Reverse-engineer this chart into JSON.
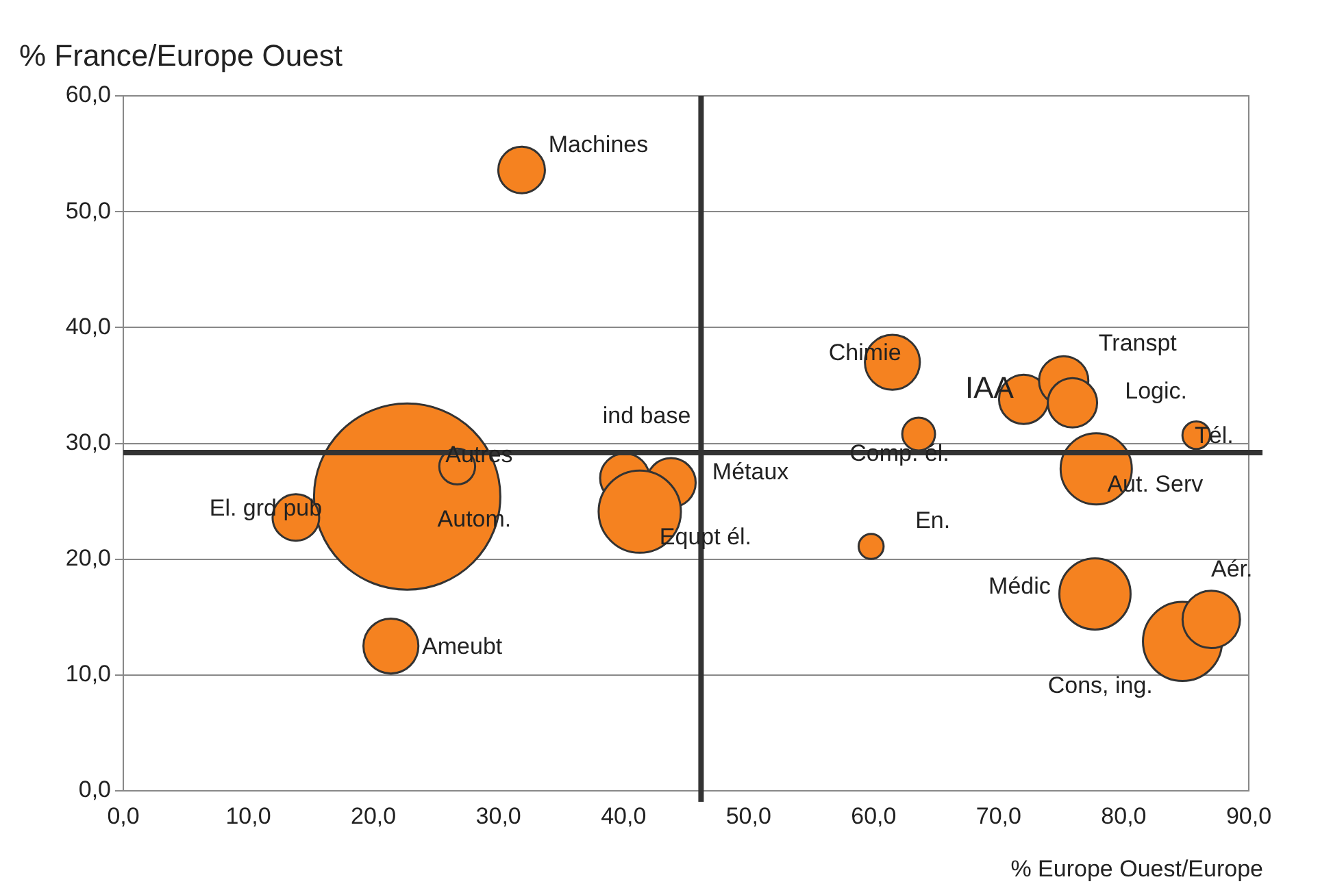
{
  "chart_data": {
    "type": "bubble",
    "ylabel": "% France/Europe Ouest",
    "xlabel": "% Europe Ouest/Europe",
    "x": [
      31.85,
      22.7,
      26.7,
      13.8,
      21.4,
      40.1,
      43.8,
      41.3,
      61.5,
      63.6,
      59.8,
      72.0,
      75.2,
      75.9,
      85.8,
      77.8,
      77.7,
      84.7,
      87.0
    ],
    "series": [
      {
        "color": "#f58220",
        "values": [
          53.6,
          25.4,
          28.0,
          23.6,
          12.5,
          27.0,
          26.6,
          24.1,
          37.0,
          30.8,
          21.1,
          33.8,
          35.4,
          33.5,
          30.7,
          27.8,
          17.0,
          12.9,
          14.8
        ],
        "sizes": [
          0.0625,
          1,
          0.037,
          0.0625,
          0.087,
          0.07,
          0.07,
          0.195,
          0.087,
          0.031,
          0.018,
          0.07,
          0.07,
          0.07,
          0.022,
          0.146,
          0.146,
          0.18,
          0.095
        ]
      }
    ],
    "xlim": [
      0,
      90
    ],
    "ylim": [
      0,
      60
    ],
    "xticks": [
      {
        "value": 0,
        "label": "0,0"
      },
      {
        "value": 10,
        "label": "10,0"
      },
      {
        "value": 20,
        "label": "20,0"
      },
      {
        "value": 30,
        "label": "30,0"
      },
      {
        "value": 40,
        "label": "40,0"
      },
      {
        "value": 50,
        "label": "50,0"
      },
      {
        "value": 60,
        "label": "60,0"
      },
      {
        "value": 70,
        "label": "70,0"
      },
      {
        "value": 80,
        "label": "80,0"
      },
      {
        "value": 90,
        "label": "90,0"
      }
    ],
    "yticks": [
      {
        "value": 0,
        "label": "0,0"
      },
      {
        "value": 10,
        "label": "10,0"
      },
      {
        "value": 20,
        "label": "20,0"
      },
      {
        "value": 30,
        "label": "30,0"
      },
      {
        "value": 40,
        "label": "40,0"
      },
      {
        "value": 50,
        "label": "50,0"
      },
      {
        "value": 60,
        "label": "60,0"
      }
    ],
    "grid": "y",
    "legend": false,
    "ref_lines": [
      {
        "axis": "x",
        "value": 46.2,
        "color": "#333333"
      },
      {
        "axis": "y",
        "value": 29.2,
        "color": "#333333"
      }
    ],
    "annotations": [
      {
        "text": "Machines",
        "x": 31.85,
        "y": 53.6
      },
      {
        "text": "Autom.",
        "x": 22.7,
        "y": 25.4
      },
      {
        "text": "Autres",
        "x": 26.7,
        "y": 28.0
      },
      {
        "text": "El. grd pub",
        "x": 13.8,
        "y": 23.6
      },
      {
        "text": "Ameubt",
        "x": 21.4,
        "y": 12.5
      },
      {
        "text": "ind base",
        "x": 40.1,
        "y": 27.0
      },
      {
        "text": "Métaux",
        "x": 43.8,
        "y": 26.6
      },
      {
        "text": "Equpt él.",
        "x": 41.3,
        "y": 24.1
      },
      {
        "text": "Chimie",
        "x": 61.5,
        "y": 37.0
      },
      {
        "text": "Comp. él.",
        "x": 63.6,
        "y": 30.8
      },
      {
        "text": "En.",
        "x": 59.8,
        "y": 21.1
      },
      {
        "text": "IAA",
        "x": 72.0,
        "y": 33.8
      },
      {
        "text": "Transpt",
        "x": 75.2,
        "y": 35.4
      },
      {
        "text": "Logic.",
        "x": 75.9,
        "y": 33.5
      },
      {
        "text": "Tél.",
        "x": 85.8,
        "y": 30.7
      },
      {
        "text": "Aut. Serv",
        "x": 77.8,
        "y": 27.8
      },
      {
        "text": "Médic",
        "x": 77.7,
        "y": 17.0
      },
      {
        "text": "Cons, ing.",
        "x": 84.7,
        "y": 12.9
      },
      {
        "text": "Aér.",
        "x": 87.0,
        "y": 14.8
      }
    ]
  }
}
